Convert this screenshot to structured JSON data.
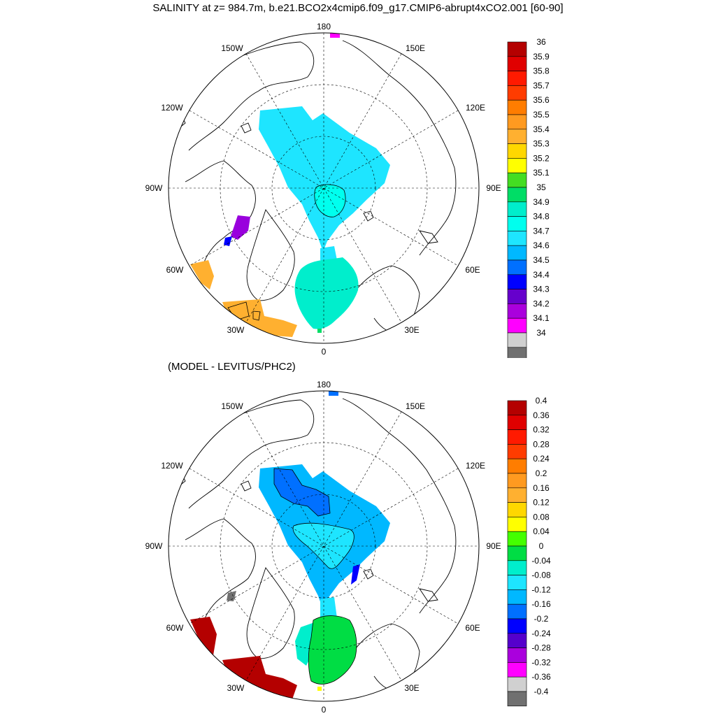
{
  "title": "SALINITY at z= 984.7m, b.e21.BCO2x4cmip6.f09_g17.CMIP6-abrupt4xCO2.001 [60-90]",
  "subtitle": "(MODEL - LEVITUS/PHC2)",
  "map_labels": {
    "top": "180",
    "bottom": "0",
    "lon_150w": "150W",
    "lon_150e": "150E",
    "lon_120w": "120W",
    "lon_120e": "120E",
    "lon_90w": "90W",
    "lon_90e": "90E",
    "lon_60w": "60W",
    "lon_60e": "60E",
    "lon_30w": "30W",
    "lon_30e": "30E"
  },
  "colorbar1": {
    "labels": [
      "36",
      "35.9",
      "35.8",
      "35.7",
      "35.6",
      "35.5",
      "35.4",
      "35.3",
      "35.2",
      "35.1",
      "35",
      "34.9",
      "34.8",
      "34.7",
      "34.6",
      "34.5",
      "34.4",
      "34.3",
      "34.2",
      "34.1",
      "34"
    ],
    "colors": [
      "#b40000",
      "#e00000",
      "#ff1a00",
      "#ff3c00",
      "#ff7d00",
      "#ff9a20",
      "#ffb030",
      "#ffd700",
      "#ffff00",
      "#44dd22",
      "#00dd66",
      "#00eecc",
      "#00ffee",
      "#1ee5ff",
      "#00b8ff",
      "#0070ff",
      "#0000ff",
      "#6600cc",
      "#aa00dd",
      "#ff00ff",
      "#d0d0d0",
      "#707070"
    ]
  },
  "colorbar2": {
    "labels": [
      "0.4",
      "0.36",
      "0.32",
      "0.28",
      "0.24",
      "0.2",
      "0.16",
      "0.12",
      "0.08",
      "0.04",
      "0",
      "-0.04",
      "-0.08",
      "-0.12",
      "-0.16",
      "-0.2",
      "-0.24",
      "-0.28",
      "-0.32",
      "-0.36",
      "-0.4"
    ],
    "colors": [
      "#b40000",
      "#e00000",
      "#ff1a00",
      "#ff3c00",
      "#ff7d00",
      "#ff9a20",
      "#ffb030",
      "#ffd700",
      "#ffff00",
      "#44ff00",
      "#00dd44",
      "#00eecc",
      "#1ee5ff",
      "#00b8ff",
      "#0070ff",
      "#0000ff",
      "#5500cc",
      "#aa00dd",
      "#ff00ff",
      "#d0d0d0",
      "#707070"
    ]
  },
  "panel1_fills": {
    "arctic": "#1ee5ff",
    "nordic": "#00eecc",
    "core": "#00ffee",
    "baffin": "#9900dd",
    "baffin_edge": "#0000ff",
    "labrador": "#ffb030",
    "irminger": "#ffb030",
    "top_spot": "#ff00ff",
    "green_spot": "#00dd66"
  },
  "panel2_fills": {
    "arctic": "#00b8ff",
    "arctic_inner": "#1ee5ff",
    "canada_deep": "#0070ff",
    "nordic": "#00dd44",
    "nordic_edge": "#00eecc",
    "rim_blue": "#0000ff",
    "baffin": "#707070",
    "labrador": "#b40000",
    "irminger": "#b40000",
    "top_spot": "#0070ff",
    "yellow_spot": "#ffff00"
  }
}
